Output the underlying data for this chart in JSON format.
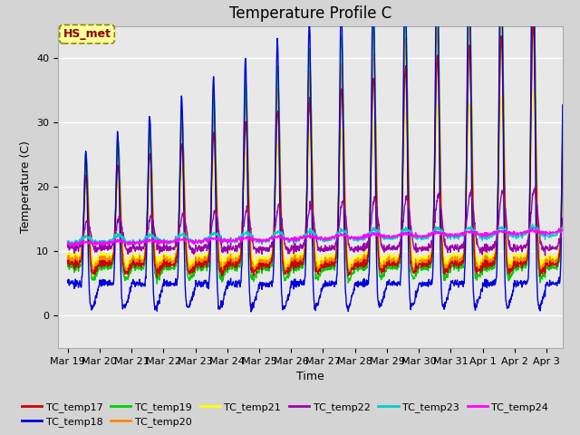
{
  "title": "Temperature Profile C",
  "xlabel": "Time",
  "ylabel": "Temperature (C)",
  "ylim": [
    -5,
    45
  ],
  "annotation": "HS_met",
  "series_colors": {
    "TC_temp17": "#cc0000",
    "TC_temp18": "#0000dd",
    "TC_temp19": "#00cc00",
    "TC_temp20": "#ff8800",
    "TC_temp21": "#ffff00",
    "TC_temp22": "#9900aa",
    "TC_temp23": "#00cccc",
    "TC_temp24": "#ff00ff"
  },
  "x_tick_labels": [
    "Mar 19",
    "Mar 20",
    "Mar 21",
    "Mar 22",
    "Mar 23",
    "Mar 24",
    "Mar 25",
    "Mar 26",
    "Mar 27",
    "Mar 28",
    "Mar 29",
    "Mar 30",
    "Mar 31",
    "Apr 1",
    "Apr 2",
    "Apr 3"
  ],
  "plot_bg": "#e8e8e8",
  "fig_bg": "#d4d4d4",
  "grid_color": "#ffffff",
  "title_fontsize": 12,
  "axis_label_fontsize": 9,
  "tick_fontsize": 8
}
